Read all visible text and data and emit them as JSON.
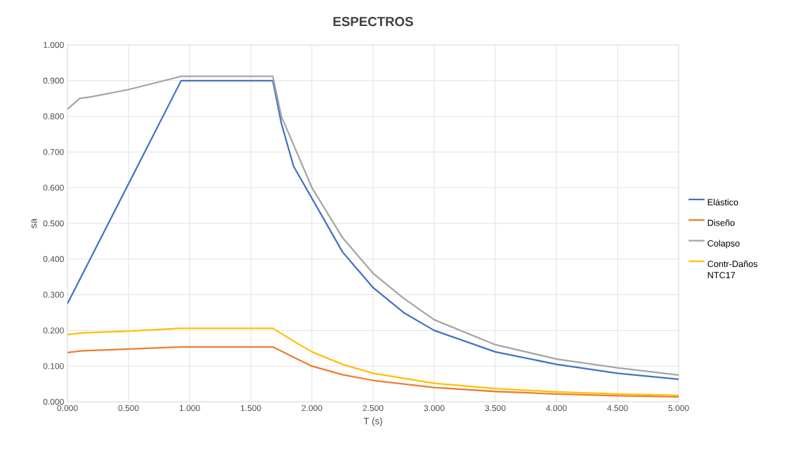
{
  "chart_data": {
    "type": "line",
    "title": "ESPECTROS",
    "xlabel": "T (s)",
    "ylabel": "sa",
    "xlim": [
      0,
      5
    ],
    "ylim": [
      0,
      1
    ],
    "xticks": [
      {
        "value": 0,
        "label": "0.000"
      },
      {
        "value": 0.5,
        "label": "0.500"
      },
      {
        "value": 1,
        "label": "1.000"
      },
      {
        "value": 1.5,
        "label": "1.500"
      },
      {
        "value": 2,
        "label": "2.000"
      },
      {
        "value": 2.5,
        "label": "2.500"
      },
      {
        "value": 3,
        "label": "3.000"
      },
      {
        "value": 3.5,
        "label": "3.500"
      },
      {
        "value": 4,
        "label": "4.000"
      },
      {
        "value": 4.5,
        "label": "4.500"
      },
      {
        "value": 5,
        "label": "5.000"
      }
    ],
    "yticks": [
      {
        "value": 0,
        "label": "0.000"
      },
      {
        "value": 0.1,
        "label": "0.100"
      },
      {
        "value": 0.2,
        "label": "0.200"
      },
      {
        "value": 0.3,
        "label": "0.300"
      },
      {
        "value": 0.4,
        "label": "0.400"
      },
      {
        "value": 0.5,
        "label": "0.500"
      },
      {
        "value": 0.6,
        "label": "0.600"
      },
      {
        "value": 0.7,
        "label": "0.700"
      },
      {
        "value": 0.8,
        "label": "0.800"
      },
      {
        "value": 0.9,
        "label": "0.900"
      },
      {
        "value": 1,
        "label": "1.000"
      }
    ],
    "grid": true,
    "legend": "right",
    "marker": "none",
    "line_style": "solid",
    "series": [
      {
        "name": "Elástico",
        "color": "#4472c4",
        "x": [
          0,
          0.93,
          1.68,
          1.75,
          1.85,
          2.0,
          2.25,
          2.5,
          2.75,
          3.0,
          3.5,
          4.0,
          4.5,
          5.0
        ],
        "values": [
          0.275,
          0.9,
          0.9,
          0.78,
          0.66,
          0.57,
          0.42,
          0.32,
          0.25,
          0.2,
          0.14,
          0.105,
          0.08,
          0.063
        ]
      },
      {
        "name": "Diseño",
        "color": "#ed7d31",
        "x": [
          0,
          0.12,
          0.5,
          0.93,
          1.68,
          1.85,
          2.0,
          2.25,
          2.5,
          3.0,
          3.5,
          4.0,
          4.5,
          5.0
        ],
        "values": [
          0.138,
          0.143,
          0.148,
          0.154,
          0.154,
          0.125,
          0.1,
          0.076,
          0.06,
          0.04,
          0.029,
          0.022,
          0.017,
          0.014
        ]
      },
      {
        "name": "Colapso",
        "color": "#a5a5a5",
        "x": [
          0,
          0.1,
          0.2,
          0.5,
          0.93,
          1.68,
          1.75,
          2.0,
          2.25,
          2.5,
          2.75,
          3.0,
          3.5,
          4.0,
          4.5,
          5.0
        ],
        "values": [
          0.82,
          0.85,
          0.855,
          0.875,
          0.912,
          0.912,
          0.8,
          0.6,
          0.46,
          0.36,
          0.29,
          0.23,
          0.16,
          0.12,
          0.095,
          0.075
        ]
      },
      {
        "name": "Contr-Daños NTC17",
        "color": "#ffc000",
        "x": [
          0,
          0.12,
          0.5,
          0.93,
          1.68,
          1.85,
          2.0,
          2.25,
          2.5,
          3.0,
          3.5,
          4.0,
          4.5,
          5.0
        ],
        "values": [
          0.188,
          0.193,
          0.198,
          0.206,
          0.206,
          0.17,
          0.14,
          0.105,
          0.08,
          0.052,
          0.037,
          0.028,
          0.022,
          0.018
        ]
      }
    ]
  }
}
